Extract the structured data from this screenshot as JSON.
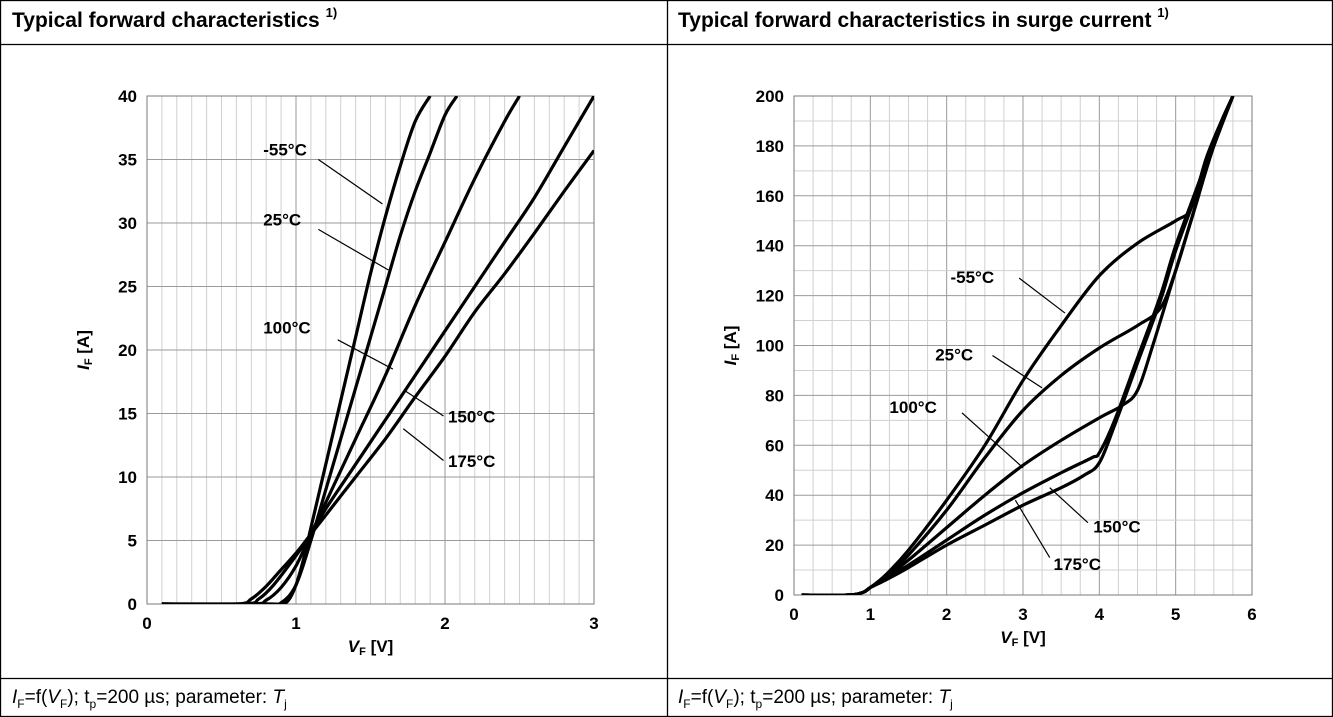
{
  "panels": [
    {
      "title": "Typical forward characteristics",
      "title_sup": "1)",
      "caption": {
        "lhs": "I",
        "lhs_sub": "F",
        "eq": "=f(",
        "var": "V",
        "var_sub": "F",
        "rest1": "); t",
        "tp_sub": "p",
        "rest2": "=200 µs; parameter: ",
        "param": "T",
        "param_sub": "j"
      }
    },
    {
      "title": "Typical forward characteristics in surge current",
      "title_sup": "1)",
      "caption": {
        "lhs": "I",
        "lhs_sub": "F",
        "eq": "=f(",
        "var": "V",
        "var_sub": "F",
        "rest1": "); t",
        "tp_sub": "p",
        "rest2": "=200 µs; parameter: ",
        "param": "T",
        "param_sub": "j"
      }
    }
  ],
  "chart_data": [
    {
      "type": "line",
      "xlabel": "V",
      "xlabel_sub": "F",
      "xlabel_unit": " [V]",
      "ylabel": "I",
      "ylabel_sub": "F",
      "ylabel_unit": " [A]",
      "xlim": [
        0,
        3
      ],
      "ylim": [
        0,
        40
      ],
      "xticks": [
        0,
        1,
        2,
        3
      ],
      "yticks": [
        0,
        5,
        10,
        15,
        20,
        25,
        30,
        35,
        40
      ],
      "grid": true,
      "series": [
        {
          "name": "-55°C",
          "x": [
            0.1,
            0.8,
            0.9,
            0.95,
            1.0,
            1.05,
            1.1,
            1.2,
            1.3,
            1.4,
            1.5,
            1.6,
            1.7,
            1.8,
            1.9
          ],
          "y": [
            0,
            0,
            0,
            0.3,
            1.5,
            3.5,
            6,
            11,
            16,
            21,
            26,
            30.5,
            34.5,
            38,
            40
          ]
        },
        {
          "name": "25°C",
          "x": [
            0.1,
            0.8,
            0.9,
            1.0,
            1.1,
            1.2,
            1.3,
            1.4,
            1.5,
            1.6,
            1.7,
            1.8,
            1.9,
            2.0,
            2.08
          ],
          "y": [
            0,
            0,
            0.1,
            1.5,
            5,
            9,
            13,
            17,
            21,
            25,
            29,
            32.5,
            35.5,
            38.5,
            40
          ]
        },
        {
          "name": "100°C",
          "x": [
            0.1,
            0.7,
            0.8,
            0.9,
            1.0,
            1.1,
            1.2,
            1.4,
            1.6,
            1.8,
            2.0,
            2.2,
            2.4,
            2.5
          ],
          "y": [
            0,
            0,
            0.3,
            1.3,
            3,
            5.5,
            8,
            13,
            18,
            23.5,
            28.5,
            33.5,
            38,
            40
          ]
        },
        {
          "name": "150°C",
          "x": [
            0.1,
            0.65,
            0.75,
            0.85,
            1.0,
            1.1,
            1.2,
            1.4,
            1.6,
            1.8,
            2.0,
            2.2,
            2.4,
            2.6,
            2.8,
            3.0
          ],
          "y": [
            0,
            0,
            0.4,
            1.5,
            3.8,
            5.5,
            7.5,
            11,
            14.5,
            18,
            21.5,
            25,
            28.5,
            32,
            36,
            40
          ]
        },
        {
          "name": "175°C",
          "x": [
            0.1,
            0.6,
            0.7,
            0.8,
            0.9,
            1.0,
            1.1,
            1.2,
            1.4,
            1.6,
            1.8,
            2.0,
            2.2,
            2.4,
            2.6,
            2.8,
            3.0
          ],
          "y": [
            0,
            0,
            0.4,
            1.4,
            2.7,
            4,
            5.5,
            7,
            10,
            13,
            16.3,
            19.5,
            23,
            26,
            29.2,
            32.5,
            35.7
          ]
        }
      ],
      "annotations": [
        "-55°C",
        "25°C",
        "100°C",
        "150°C",
        "175°C"
      ]
    },
    {
      "type": "line",
      "xlabel": "V",
      "xlabel_sub": "F",
      "xlabel_unit": " [V]",
      "ylabel": "I",
      "ylabel_sub": "F",
      "ylabel_unit": " [A]",
      "xlim": [
        0,
        6
      ],
      "ylim": [
        0,
        200
      ],
      "xticks": [
        0,
        1,
        2,
        3,
        4,
        5,
        6
      ],
      "yticks": [
        0,
        20,
        40,
        60,
        80,
        100,
        120,
        140,
        160,
        180,
        200
      ],
      "grid": true,
      "series": [
        {
          "name": "-55°C",
          "x": [
            0.1,
            0.7,
            0.9,
            1.0,
            1.2,
            1.5,
            2.0,
            2.5,
            3.0,
            3.5,
            4.0,
            4.5,
            5.0,
            5.2,
            5.4,
            5.6,
            5.75
          ],
          "y": [
            0,
            0,
            1,
            3,
            8,
            18,
            38,
            60,
            86,
            108,
            128,
            141,
            150,
            155,
            175,
            190,
            200
          ]
        },
        {
          "name": "25°C",
          "x": [
            0.1,
            0.7,
            0.9,
            1.0,
            1.2,
            1.5,
            2.0,
            2.5,
            3.0,
            3.5,
            4.0,
            4.5,
            4.8,
            5.0,
            5.2,
            5.5,
            5.75
          ],
          "y": [
            0,
            0,
            1,
            3,
            7,
            16,
            34,
            55,
            74,
            88,
            99,
            108,
            115,
            130,
            150,
            180,
            200
          ]
        },
        {
          "name": "100°C",
          "x": [
            0.1,
            0.7,
            0.9,
            1.0,
            1.2,
            1.5,
            2.0,
            2.5,
            3.0,
            3.5,
            4.0,
            4.3,
            4.5,
            4.7,
            5.0,
            5.3,
            5.5,
            5.75
          ],
          "y": [
            0,
            0,
            1,
            3,
            7,
            14,
            27,
            40,
            52,
            62,
            71,
            76,
            82,
            100,
            130,
            160,
            182,
            200
          ]
        },
        {
          "name": "150°C",
          "x": [
            0.1,
            0.7,
            0.9,
            1.0,
            1.2,
            1.5,
            2.0,
            2.5,
            3.0,
            3.5,
            3.9,
            4.0,
            4.2,
            4.5,
            4.8,
            5.0,
            5.3,
            5.5,
            5.75
          ],
          "y": [
            0,
            0,
            1,
            3,
            7,
            12,
            22,
            32,
            41,
            49,
            55,
            57,
            70,
            95,
            120,
            140,
            165,
            182,
            200
          ]
        },
        {
          "name": "175°C",
          "x": [
            0.1,
            0.7,
            0.9,
            1.0,
            1.2,
            1.5,
            2.0,
            2.5,
            3.0,
            3.5,
            3.8,
            4.0,
            4.2,
            4.5,
            4.8,
            5.0,
            5.3,
            5.5,
            5.75
          ],
          "y": [
            0,
            0,
            1,
            3,
            6,
            11,
            20,
            28,
            36,
            43,
            48,
            53,
            68,
            93,
            118,
            138,
            163,
            180,
            200
          ]
        }
      ],
      "annotations": [
        "-55°C",
        "25°C",
        "100°C",
        "150°C",
        "175°C"
      ]
    }
  ]
}
